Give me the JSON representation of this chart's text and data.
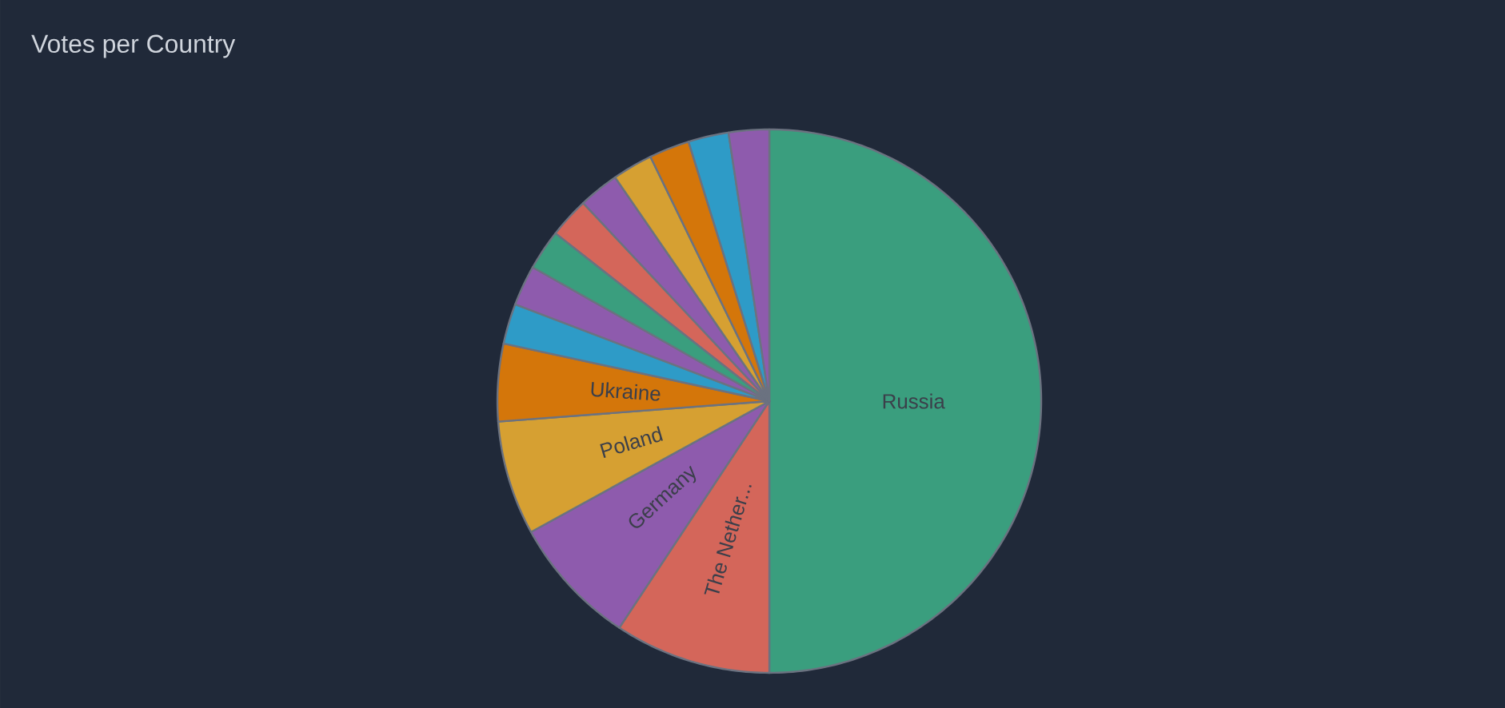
{
  "chart_data": {
    "type": "pie",
    "title": "Votes per Country",
    "categories": [
      "Russia",
      "The Nether...",
      "Germany",
      "Poland",
      "Ukraine",
      null,
      null,
      null,
      null,
      null,
      null,
      null,
      null,
      null
    ],
    "values": [
      50,
      9.3,
      7.7,
      6.8,
      4.6,
      2.4,
      2.4,
      2.4,
      2.4,
      2.4,
      2.4,
      2.4,
      2.4,
      2.4
    ],
    "colors": [
      "#3a9e7e",
      "#d4665a",
      "#8e5bad",
      "#d6a032",
      "#d4760a",
      "#2e9bc7",
      "#8e5bad",
      "#3a9e7e",
      "#d4665a",
      "#8e5bad",
      "#d6a032",
      "#d4760a",
      "#2e9bc7",
      "#8e5bad"
    ]
  }
}
